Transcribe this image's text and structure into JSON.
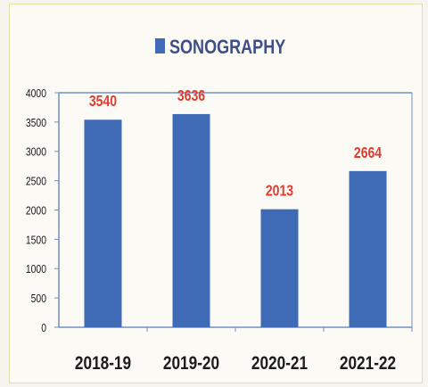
{
  "chart_data": {
    "type": "bar",
    "categories": [
      "2018-19",
      "2019-20",
      "2020-21",
      "2021-22"
    ],
    "series": [
      {
        "name": "SONOGRAPHY",
        "values": [
          3540,
          3636,
          2013,
          2664
        ]
      }
    ],
    "ylim": [
      0,
      4000
    ],
    "yticks": [
      0,
      500,
      1000,
      1500,
      2000,
      2500,
      3000,
      3500,
      4000
    ],
    "legend_position": "top",
    "grid": false,
    "colors": {
      "bar": "#3f6ab6",
      "data_label": "#e23b2e",
      "axis": "#6f8fc9"
    }
  }
}
